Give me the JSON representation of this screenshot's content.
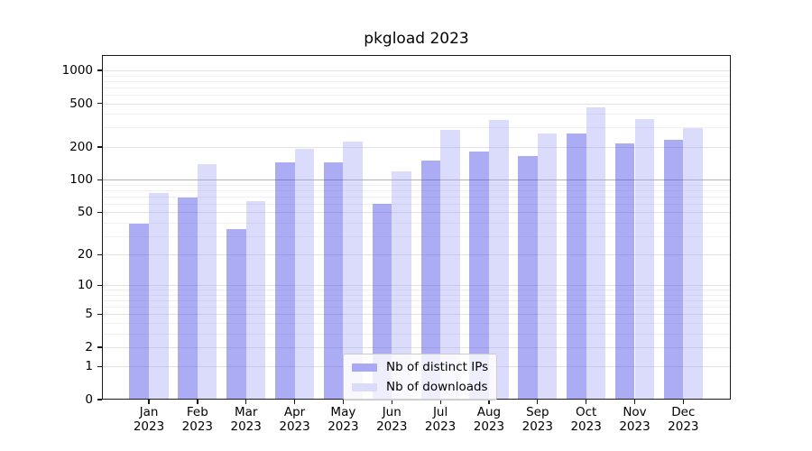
{
  "chart_data": {
    "type": "bar",
    "title": "pkgload 2023",
    "xlabel": "",
    "ylabel": "",
    "yscale": "log1p",
    "ylim": [
      0,
      1380
    ],
    "yticks": [
      0,
      1,
      2,
      5,
      10,
      20,
      50,
      100,
      200,
      500,
      1000
    ],
    "minor_gridlines": [
      3,
      4,
      6,
      7,
      8,
      9,
      30,
      40,
      60,
      70,
      80,
      90,
      300,
      400,
      600,
      700,
      800,
      900
    ],
    "emphasized_gridline": 100,
    "grid": true,
    "legend_position": "lower center",
    "categories": [
      {
        "month": "Jan",
        "year": "2023"
      },
      {
        "month": "Feb",
        "year": "2023"
      },
      {
        "month": "Mar",
        "year": "2023"
      },
      {
        "month": "Apr",
        "year": "2023"
      },
      {
        "month": "May",
        "year": "2023"
      },
      {
        "month": "Jun",
        "year": "2023"
      },
      {
        "month": "Jul",
        "year": "2023"
      },
      {
        "month": "Aug",
        "year": "2023"
      },
      {
        "month": "Sep",
        "year": "2023"
      },
      {
        "month": "Oct",
        "year": "2023"
      },
      {
        "month": "Nov",
        "year": "2023"
      },
      {
        "month": "Dec",
        "year": "2023"
      }
    ],
    "series": [
      {
        "name": "Nb of distinct IPs",
        "fill": "rgba(70,70,230,0.45)",
        "swatch": "#a9a9f3",
        "values": [
          39,
          68,
          35,
          144,
          144,
          60,
          149,
          181,
          164,
          265,
          216,
          233
        ]
      },
      {
        "name": "Nb of downloads",
        "fill": "rgba(152,152,243,0.35)",
        "swatch": "#dbdbfa",
        "values": [
          75,
          140,
          63,
          193,
          225,
          119,
          288,
          352,
          264,
          460,
          359,
          295
        ]
      }
    ]
  }
}
